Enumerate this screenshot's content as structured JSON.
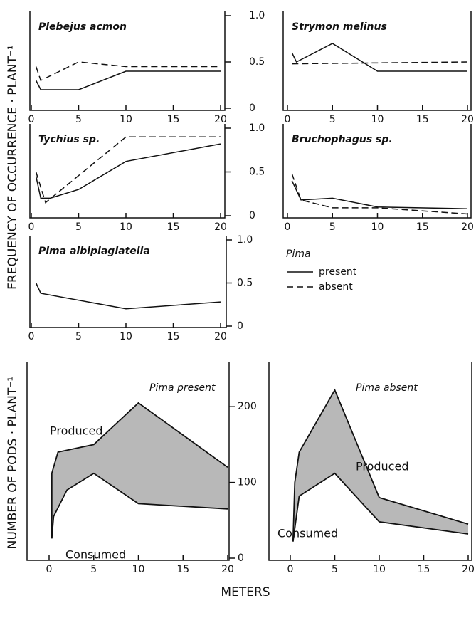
{
  "figure": {
    "ylabel_top": "FREQUENCY OF OCCURRENCE · PLANT⁻¹",
    "ylabel_bottom": "NUMBER OF PODS · PLANT⁻¹",
    "xlabel": "METERS",
    "legend_title": "Pima"
  },
  "chart_data": [
    {
      "type": "line",
      "title": "Plebejus acmon",
      "xlim": [
        0,
        20
      ],
      "xticks": [
        0,
        5,
        10,
        15,
        20
      ],
      "ylim": [
        0,
        1
      ],
      "yticks": [
        0,
        0.5,
        {
          "value": 1,
          "label": "1.0"
        }
      ],
      "series": [
        {
          "name": "present",
          "color": "#111111",
          "style": "solid",
          "x": [
            0.5,
            1,
            5,
            10,
            20
          ],
          "values": [
            0.3,
            0.2,
            0.2,
            0.4,
            0.4
          ]
        },
        {
          "name": "absent",
          "color": "#111111",
          "style": "dashed",
          "x": [
            0.5,
            1,
            5,
            10,
            20
          ],
          "values": [
            0.45,
            0.3,
            0.5,
            0.45,
            0.45
          ]
        }
      ]
    },
    {
      "type": "line",
      "title": "Strymon melinus",
      "xlim": [
        0,
        20
      ],
      "xticks": [
        0,
        5,
        10,
        15,
        20
      ],
      "ylim": [
        0,
        1
      ],
      "series": [
        {
          "name": "present",
          "color": "#111111",
          "style": "solid",
          "x": [
            0.5,
            1,
            5,
            10,
            20
          ],
          "values": [
            0.6,
            0.5,
            0.7,
            0.4,
            0.4
          ]
        },
        {
          "name": "absent",
          "color": "#111111",
          "style": "dashed",
          "x": [
            0.5,
            20
          ],
          "values": [
            0.48,
            0.5
          ]
        }
      ]
    },
    {
      "type": "line",
      "title": "Tychius sp.",
      "xlim": [
        0,
        20
      ],
      "xticks": [
        0,
        5,
        10,
        15,
        20
      ],
      "ylim": [
        0,
        1
      ],
      "yticks": [
        0,
        0.5,
        {
          "value": 1,
          "label": "1.0"
        }
      ],
      "series": [
        {
          "name": "present",
          "color": "#111111",
          "style": "solid",
          "x": [
            0.5,
            1,
            2,
            5,
            10,
            20
          ],
          "values": [
            0.45,
            0.2,
            0.2,
            0.3,
            0.62,
            0.82
          ]
        },
        {
          "name": "absent",
          "color": "#111111",
          "style": "dashed",
          "x": [
            0.5,
            1.5,
            10,
            20
          ],
          "values": [
            0.5,
            0.15,
            0.9,
            0.9
          ]
        }
      ]
    },
    {
      "type": "line",
      "title": "Bruchophagus sp.",
      "xlim": [
        0,
        20
      ],
      "xticks": [
        0,
        5,
        10,
        15,
        20
      ],
      "ylim": [
        0,
        1
      ],
      "series": [
        {
          "name": "present",
          "color": "#111111",
          "style": "solid",
          "x": [
            0.5,
            1.5,
            5,
            10,
            20
          ],
          "values": [
            0.4,
            0.18,
            0.2,
            0.1,
            0.08
          ]
        },
        {
          "name": "absent",
          "color": "#111111",
          "style": "dashed",
          "x": [
            0.5,
            1.5,
            5,
            10,
            20
          ],
          "values": [
            0.48,
            0.18,
            0.09,
            0.09,
            0.02
          ]
        }
      ]
    },
    {
      "type": "line",
      "title": "Pima albiplagiatella",
      "xlim": [
        0,
        20
      ],
      "xticks": [
        0,
        5,
        10,
        15,
        20
      ],
      "ylim": [
        0,
        1
      ],
      "yticks": [
        0,
        0.5,
        {
          "value": 1,
          "label": "1.0"
        }
      ],
      "series": [
        {
          "name": "present",
          "color": "#111111",
          "style": "solid",
          "x": [
            0.5,
            1,
            10,
            20
          ],
          "values": [
            0.5,
            0.38,
            0.2,
            0.28
          ]
        }
      ]
    },
    {
      "type": "area",
      "title": "Pima present",
      "xlim": [
        0,
        20
      ],
      "xticks": [
        0,
        5,
        10,
        15,
        20
      ],
      "ylim": [
        0,
        250
      ],
      "yticks": [
        0,
        100,
        200
      ],
      "fill": "#b8b8b8",
      "series": [
        {
          "name": "Produced",
          "color": "#111111",
          "x": [
            0.3,
            0.3,
            1,
            5,
            10,
            20
          ],
          "values": [
            26,
            112,
            140,
            150,
            205,
            120
          ]
        },
        {
          "name": "Consumed",
          "color": "#111111",
          "x": [
            0.3,
            0.5,
            2,
            5,
            10,
            20
          ],
          "values": [
            26,
            55,
            90,
            112,
            72,
            65
          ]
        }
      ]
    },
    {
      "type": "area",
      "title": "Pima absent",
      "xlim": [
        0,
        20
      ],
      "xticks": [
        0,
        5,
        10,
        15,
        20
      ],
      "ylim": [
        0,
        250
      ],
      "fill": "#b8b8b8",
      "series": [
        {
          "name": "Produced",
          "color": "#111111",
          "x": [
            0.3,
            0.5,
            1,
            5,
            10,
            20
          ],
          "values": [
            22,
            100,
            140,
            222,
            80,
            45
          ]
        },
        {
          "name": "Consumed",
          "color": "#111111",
          "x": [
            0.3,
            1,
            5,
            10,
            20
          ],
          "values": [
            22,
            82,
            112,
            48,
            32
          ]
        }
      ]
    }
  ]
}
